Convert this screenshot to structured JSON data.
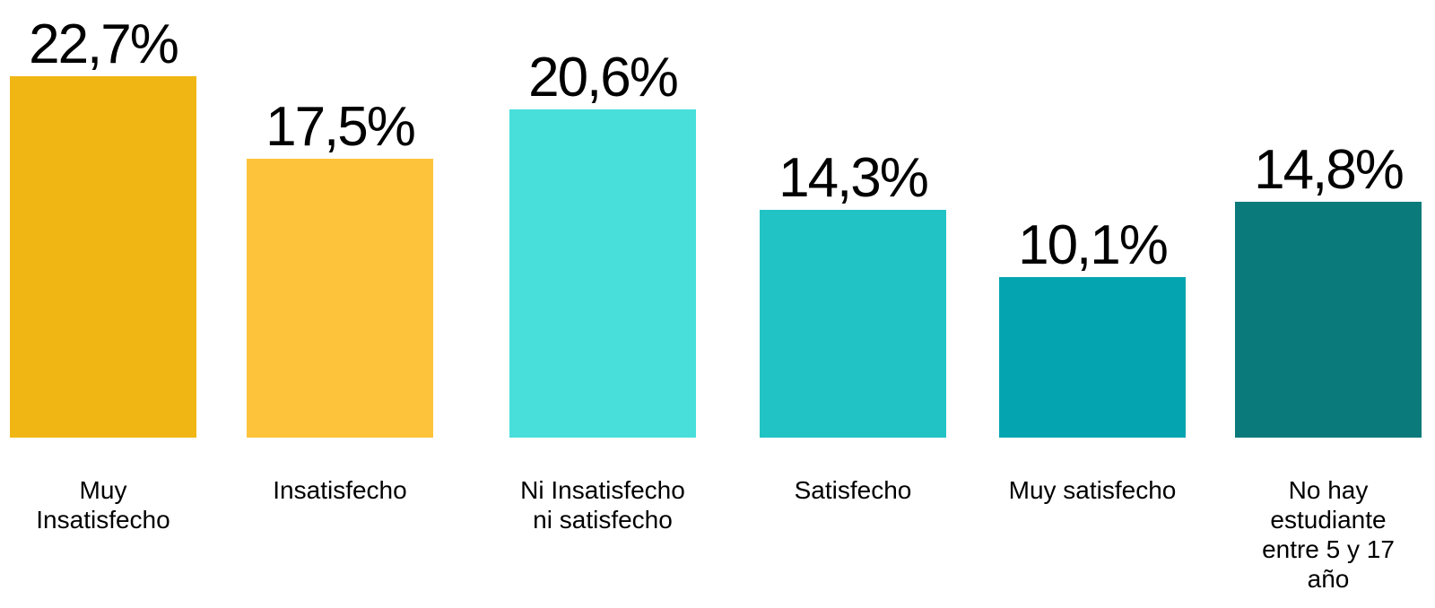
{
  "chart_data": {
    "type": "bar",
    "categories": [
      "Muy Insatisfecho",
      "Insatisfecho",
      "Ni Insatisfecho ni satisfecho",
      "Satisfecho",
      "Muy satisfecho",
      "No hay estudiante entre 5 y 17 año"
    ],
    "values": [
      22.7,
      17.5,
      20.6,
      14.3,
      10.1,
      14.8
    ],
    "value_labels": [
      "22,7%",
      "17,5%",
      "20,6%",
      "14,3%",
      "10,1%",
      "14,8%"
    ],
    "colors": [
      "#f0b614",
      "#fdc43b",
      "#48dfdb",
      "#22c3c5",
      "#04a5b0",
      "#0a7a7a"
    ]
  }
}
